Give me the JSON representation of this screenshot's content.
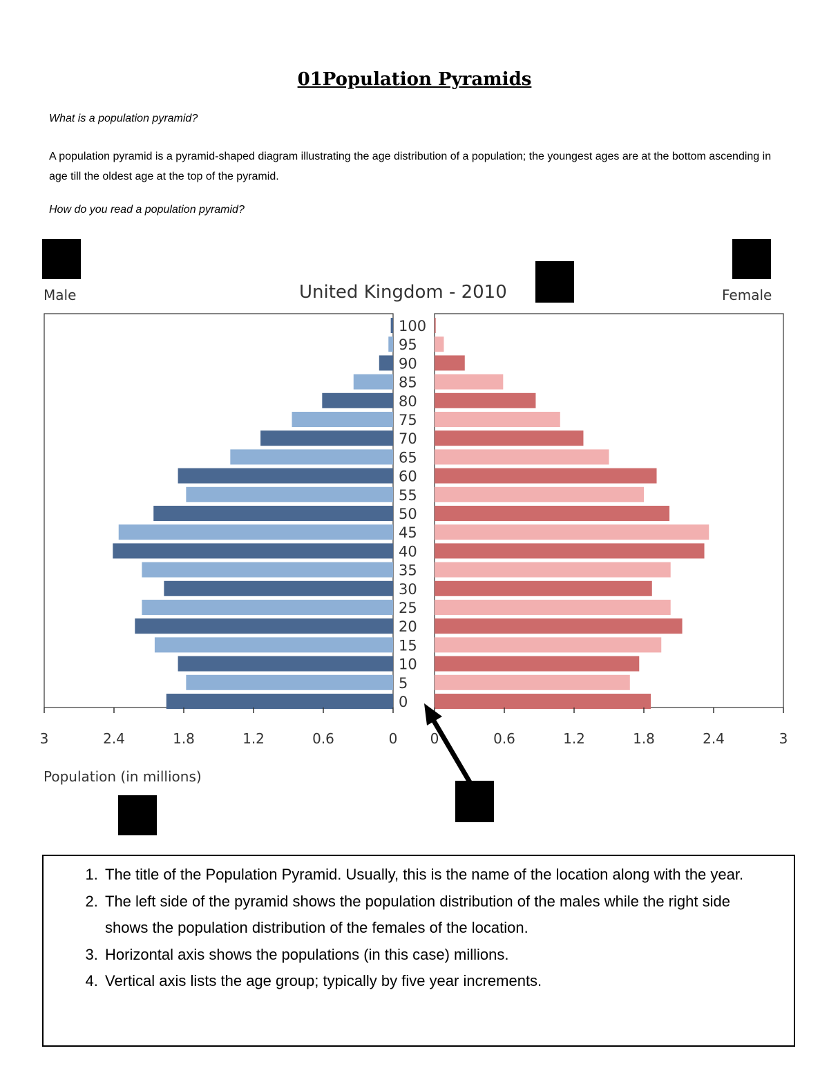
{
  "document": {
    "title": "01Population Pyramids",
    "question1": "What is a population pyramid?",
    "definition": "A population pyramid is a pyramid-shaped diagram illustrating the age distribution of a population; the youngest ages are at the bottom ascending in age till the oldest age at the top of the pyramid.",
    "question2": "How do you read a population pyramid?",
    "notes": [
      "The title of the Population Pyramid. Usually, this is the name of the location along with the year.",
      "The left side of the pyramid shows the population distribution of the males while the right side shows the population distribution of the females of the location.",
      "Horizontal axis shows the populations (in this case) millions.",
      "Vertical axis lists the age group; typically by five year increments."
    ]
  },
  "chart_data": {
    "type": "bar",
    "title": "United Kingdom - 2010",
    "left_label": "Male",
    "right_label": "Female",
    "xlabel": "Population (in millions)",
    "xlim": [
      0,
      3
    ],
    "x_ticks": [
      "3",
      "2.4",
      "1.8",
      "1.2",
      "0.6",
      "0"
    ],
    "x_ticks_right": [
      "0",
      "0.6",
      "1.2",
      "1.8",
      "2.4",
      "3"
    ],
    "categories": [
      "0",
      "5",
      "10",
      "15",
      "20",
      "25",
      "30",
      "35",
      "40",
      "45",
      "50",
      "55",
      "60",
      "65",
      "70",
      "75",
      "80",
      "85",
      "90",
      "95",
      "100"
    ],
    "series": [
      {
        "name": "Male",
        "values": [
          1.95,
          1.78,
          1.85,
          2.05,
          2.22,
          2.16,
          1.97,
          2.16,
          2.41,
          2.36,
          2.06,
          1.78,
          1.85,
          1.4,
          1.14,
          0.87,
          0.61,
          0.34,
          0.12,
          0.04,
          0.02
        ]
      },
      {
        "name": "Female",
        "values": [
          1.86,
          1.68,
          1.76,
          1.95,
          2.13,
          2.03,
          1.87,
          2.03,
          2.32,
          2.36,
          2.02,
          1.8,
          1.91,
          1.5,
          1.28,
          1.08,
          0.87,
          0.59,
          0.26,
          0.08,
          0.01
        ]
      }
    ],
    "colors": {
      "male_dark": "#4a6891",
      "male_light": "#8eb0d6",
      "female_dark": "#cd6b6b",
      "female_light": "#f2b0b0"
    }
  }
}
